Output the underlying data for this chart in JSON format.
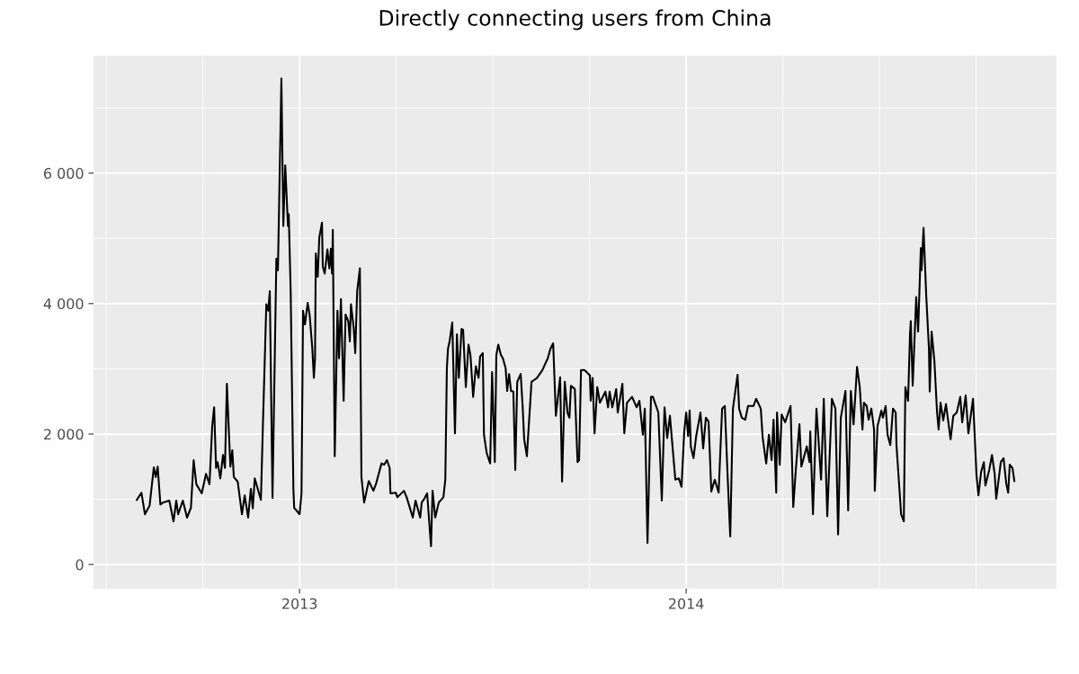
{
  "chart_data": {
    "type": "line",
    "title": "Directly connecting users from China",
    "x": [
      2012.579,
      2012.591,
      2012.6,
      2012.612,
      2012.623,
      2012.628,
      2012.633,
      2012.64,
      2012.647,
      2012.663,
      2012.674,
      2012.681,
      2012.686,
      2012.698,
      2012.709,
      2012.719,
      2012.726,
      2012.733,
      2012.747,
      2012.758,
      2012.767,
      2012.774,
      2012.779,
      2012.784,
      2012.788,
      2012.795,
      2012.802,
      2012.807,
      2012.812,
      2012.821,
      2012.826,
      2012.83,
      2012.84,
      2012.851,
      2012.858,
      2012.867,
      2012.874,
      2012.879,
      2012.884,
      2012.9,
      2012.905,
      2012.914,
      2012.919,
      2012.923,
      2012.93,
      2012.94,
      2012.944,
      2012.953,
      2012.958,
      2012.963,
      2012.97,
      2012.972,
      2012.977,
      2012.984,
      2012.986,
      2013.0,
      2013.005,
      2013.009,
      2013.014,
      2013.021,
      2013.026,
      2013.033,
      2013.037,
      2013.04,
      2013.042,
      2013.047,
      2013.051,
      2013.058,
      2013.06,
      2013.065,
      2013.072,
      2013.077,
      2013.081,
      2013.084,
      2013.086,
      2013.091,
      2013.098,
      2013.102,
      2013.107,
      2013.114,
      2013.119,
      2013.126,
      2013.13,
      2013.133,
      2013.14,
      2013.144,
      2013.149,
      2013.156,
      2013.16,
      2013.167,
      2013.179,
      2013.191,
      2013.198,
      2013.212,
      2013.219,
      2013.226,
      2013.233,
      2013.235,
      2013.249,
      2013.253,
      2013.27,
      2013.277,
      2013.293,
      2013.3,
      2013.312,
      2013.316,
      2013.323,
      2013.33,
      2013.34,
      2013.344,
      2013.351,
      2013.36,
      2013.372,
      2013.377,
      2013.381,
      2013.384,
      2013.388,
      2013.395,
      2013.402,
      2013.407,
      2013.412,
      2013.419,
      2013.423,
      2013.43,
      2013.437,
      2013.442,
      2013.449,
      2013.456,
      2013.463,
      2013.467,
      2013.474,
      2013.477,
      2013.484,
      2013.493,
      2013.498,
      2013.505,
      2013.509,
      2013.514,
      2013.521,
      2013.526,
      2013.533,
      2013.537,
      2013.542,
      2013.547,
      2013.553,
      2013.558,
      2013.563,
      2013.572,
      2013.577,
      2013.581,
      2013.588,
      2013.6,
      2013.607,
      2013.614,
      2013.628,
      2013.642,
      2013.649,
      2013.656,
      2013.663,
      2013.674,
      2013.679,
      2013.686,
      2013.693,
      2013.698,
      2013.702,
      2013.712,
      2013.719,
      2013.723,
      2013.728,
      2013.737,
      2013.751,
      2013.753,
      2013.758,
      2013.763,
      2013.77,
      2013.777,
      2013.791,
      2013.798,
      2013.802,
      2013.809,
      2013.819,
      2013.823,
      2013.835,
      2013.84,
      2013.847,
      2013.86,
      2013.872,
      2013.879,
      2013.888,
      2013.893,
      2013.9,
      2013.909,
      2013.914,
      2013.928,
      2013.937,
      2013.944,
      2013.951,
      2013.958,
      2013.972,
      2013.981,
      2013.988,
      2013.995,
      2014.0,
      2014.005,
      2014.009,
      2014.012,
      2014.019,
      2014.026,
      2014.037,
      2014.044,
      2014.051,
      2014.058,
      2014.065,
      2014.074,
      2014.084,
      2014.093,
      2014.1,
      2014.107,
      2014.114,
      2014.121,
      2014.133,
      2014.137,
      2014.144,
      2014.153,
      2014.16,
      2014.174,
      2014.181,
      2014.193,
      2014.198,
      2014.207,
      2014.214,
      2014.221,
      2014.226,
      2014.233,
      2014.235,
      2014.242,
      2014.247,
      2014.256,
      2014.27,
      2014.277,
      2014.284,
      2014.293,
      2014.298,
      2014.312,
      2014.319,
      2014.321,
      2014.328,
      2014.337,
      2014.349,
      2014.356,
      2014.365,
      2014.377,
      2014.386,
      2014.393,
      2014.4,
      2014.412,
      2014.419,
      2014.426,
      2014.433,
      2014.442,
      2014.449,
      2014.456,
      2014.46,
      2014.467,
      2014.472,
      2014.479,
      2014.486,
      2014.488,
      2014.495,
      2014.505,
      2014.509,
      2014.516,
      2014.521,
      2014.528,
      2014.535,
      2014.542,
      2014.544,
      2014.556,
      2014.563,
      2014.567,
      2014.574,
      2014.579,
      2014.581,
      2014.586,
      2014.595,
      2014.6,
      2014.607,
      2014.609,
      2014.614,
      2014.621,
      2014.628,
      2014.63,
      2014.635,
      2014.642,
      2014.649,
      2014.653,
      2014.658,
      2014.665,
      2014.672,
      2014.684,
      2014.691,
      2014.7,
      2014.709,
      2014.714,
      2014.723,
      2014.73,
      2014.742,
      2014.751,
      2014.756,
      2014.763,
      2014.77,
      2014.774,
      2014.784,
      2014.791,
      2014.798,
      2014.802,
      2014.814,
      2014.821,
      2014.828,
      2014.833,
      2014.837,
      2014.844,
      2014.849
    ],
    "series": [
      {
        "color": "#000000",
        "values": [
          990,
          1100,
          770,
          900,
          1490,
          1340,
          1500,
          920,
          950,
          980,
          660,
          980,
          770,
          980,
          720,
          870,
          1600,
          1230,
          1090,
          1390,
          1230,
          2120,
          2410,
          1480,
          1570,
          1320,
          1680,
          1480,
          2770,
          1500,
          1750,
          1340,
          1270,
          770,
          1060,
          720,
          1160,
          860,
          1320,
          990,
          2100,
          3990,
          3890,
          4190,
          1020,
          4690,
          4510,
          7450,
          5190,
          6120,
          5190,
          5370,
          4190,
          1160,
          870,
          770,
          1090,
          3890,
          3680,
          4010,
          3830,
          3310,
          2860,
          3160,
          4770,
          4410,
          5010,
          5240,
          4570,
          4460,
          4830,
          4540,
          4840,
          4460,
          5130,
          1660,
          3890,
          3160,
          4070,
          2510,
          3830,
          3730,
          3420,
          3990,
          3630,
          3240,
          4190,
          4540,
          1340,
          950,
          1280,
          1130,
          1240,
          1550,
          1530,
          1600,
          1480,
          1090,
          1100,
          1030,
          1130,
          1030,
          720,
          980,
          720,
          950,
          1010,
          1090,
          280,
          1130,
          720,
          950,
          1030,
          1300,
          3010,
          3310,
          3420,
          3710,
          2010,
          3530,
          2860,
          3610,
          3600,
          2720,
          3370,
          3210,
          2570,
          3040,
          2860,
          3190,
          3240,
          1990,
          1710,
          1550,
          2950,
          1570,
          3210,
          3370,
          3210,
          3160,
          3010,
          2660,
          2920,
          2660,
          2650,
          1450,
          2800,
          2920,
          2430,
          1920,
          1660,
          2800,
          2830,
          2860,
          2980,
          3160,
          3310,
          3390,
          2280,
          2870,
          1270,
          2800,
          2330,
          2250,
          2740,
          2690,
          1570,
          1600,
          2980,
          2980,
          2900,
          2510,
          2860,
          2010,
          2720,
          2480,
          2650,
          2410,
          2650,
          2410,
          2690,
          2330,
          2770,
          2010,
          2480,
          2570,
          2410,
          2510,
          1990,
          2390,
          330,
          2570,
          2570,
          2330,
          980,
          2410,
          1940,
          2280,
          1300,
          1320,
          1190,
          2040,
          2330,
          1970,
          2360,
          1810,
          1630,
          1970,
          2330,
          1780,
          2250,
          2190,
          1120,
          1300,
          1100,
          2390,
          2430,
          1390,
          430,
          2390,
          2910,
          2390,
          2250,
          2220,
          2430,
          2430,
          2540,
          2390,
          1940,
          1550,
          1990,
          1600,
          2220,
          1100,
          2330,
          1530,
          2300,
          2180,
          2430,
          880,
          1480,
          2150,
          1500,
          1810,
          1570,
          2040,
          770,
          2390,
          1300,
          2540,
          740,
          2540,
          2390,
          460,
          2250,
          2660,
          830,
          2660,
          2150,
          3030,
          2720,
          2070,
          2480,
          2430,
          2220,
          2390,
          2070,
          1130,
          2120,
          2360,
          2250,
          2430,
          1990,
          1830,
          2390,
          2330,
          1830,
          770,
          660,
          2720,
          2510,
          3530,
          3730,
          2740,
          4100,
          3570,
          4850,
          4510,
          5160,
          4120,
          3310,
          2650,
          3570,
          3130,
          2330,
          2070,
          2480,
          2210,
          2460,
          1920,
          2280,
          2330,
          2570,
          2180,
          2590,
          2010,
          2540,
          1370,
          1060,
          1420,
          1570,
          1210,
          1450,
          1680,
          1390,
          1010,
          1570,
          1630,
          1240,
          1100,
          1530,
          1480,
          1280
        ]
      }
    ],
    "xlim": [
      2012.467,
      2014.958
    ],
    "ylim": [
      -370,
      7800
    ],
    "xticks": [
      {
        "value": 2012.5,
        "label": null
      },
      {
        "value": 2012.75,
        "label": null
      },
      2013,
      {
        "value": 2013.25,
        "label": null
      },
      {
        "value": 2013.5,
        "label": null
      },
      {
        "value": 2013.75,
        "label": null
      },
      2014,
      {
        "value": 2014.25,
        "label": null
      },
      {
        "value": 2014.5,
        "label": null
      },
      {
        "value": 2014.75,
        "label": null
      }
    ],
    "yticks": [
      0,
      {
        "value": 1000,
        "label": null
      },
      {
        "value": 2000,
        "label": "2 000"
      },
      {
        "value": 3000,
        "label": null
      },
      {
        "value": 4000,
        "label": "4 000"
      },
      {
        "value": 5000,
        "label": null
      },
      {
        "value": 6000,
        "label": "6 000"
      },
      {
        "value": 7000,
        "label": null
      }
    ],
    "grid": true
  }
}
